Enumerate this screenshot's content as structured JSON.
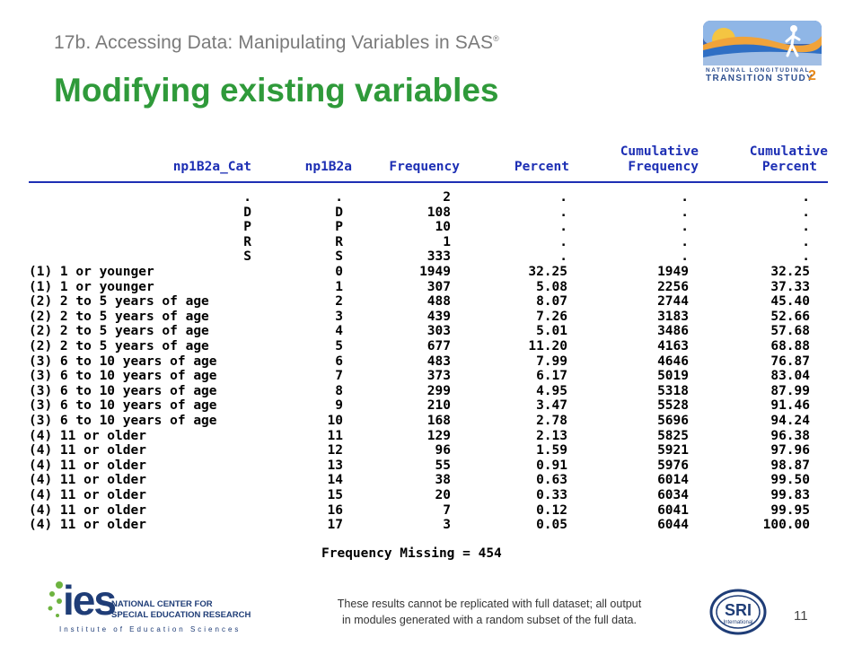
{
  "header": {
    "subtitle": "17b. Accessing Data: Manipulating Variables in SAS",
    "subtitle_mark": "®",
    "title": "Modifying existing variables"
  },
  "logos": {
    "nlts_line1": "NATIONAL LONGITUDINAL",
    "nlts_line2": "TRANSITION STUDY",
    "nlts_number": "2",
    "ies_wordmark": "ies",
    "ies_line1": "NATIONAL CENTER FOR",
    "ies_line2": "SPECIAL EDUCATION RESEARCH",
    "ies_subline": "Institute of Education Sciences",
    "sri_text": "SRI",
    "sri_subtext": "International"
  },
  "table": {
    "headers": {
      "cat": "np1B2a_Cat",
      "var": "np1B2a",
      "freq": "Frequency",
      "pct": "Percent",
      "cumfreq_1": "Cumulative",
      "cumfreq_2": "Frequency",
      "cumpct_1": "Cumulative",
      "cumpct_2": "Percent"
    },
    "rows": [
      {
        "cat": ".",
        "var": ".",
        "freq": "2",
        "pct": ".",
        "cf": ".",
        "cp": "."
      },
      {
        "cat": "D",
        "var": "D",
        "freq": "108",
        "pct": ".",
        "cf": ".",
        "cp": "."
      },
      {
        "cat": "P",
        "var": "P",
        "freq": "10",
        "pct": ".",
        "cf": ".",
        "cp": "."
      },
      {
        "cat": "R",
        "var": "R",
        "freq": "1",
        "pct": ".",
        "cf": ".",
        "cp": "."
      },
      {
        "cat": "S",
        "var": "S",
        "freq": "333",
        "pct": ".",
        "cf": ".",
        "cp": "."
      },
      {
        "cat": "(1) 1 or younger",
        "var": "0",
        "freq": "1949",
        "pct": "32.25",
        "cf": "1949",
        "cp": "32.25"
      },
      {
        "cat": "(1) 1 or younger",
        "var": "1",
        "freq": "307",
        "pct": "5.08",
        "cf": "2256",
        "cp": "37.33"
      },
      {
        "cat": "(2) 2 to 5 years of age",
        "var": "2",
        "freq": "488",
        "pct": "8.07",
        "cf": "2744",
        "cp": "45.40"
      },
      {
        "cat": "(2) 2 to 5 years of age",
        "var": "3",
        "freq": "439",
        "pct": "7.26",
        "cf": "3183",
        "cp": "52.66"
      },
      {
        "cat": "(2) 2 to 5 years of age",
        "var": "4",
        "freq": "303",
        "pct": "5.01",
        "cf": "3486",
        "cp": "57.68"
      },
      {
        "cat": "(2) 2 to 5 years of age",
        "var": "5",
        "freq": "677",
        "pct": "11.20",
        "cf": "4163",
        "cp": "68.88"
      },
      {
        "cat": "(3) 6 to 10 years of age",
        "var": "6",
        "freq": "483",
        "pct": "7.99",
        "cf": "4646",
        "cp": "76.87"
      },
      {
        "cat": "(3) 6 to 10 years of age",
        "var": "7",
        "freq": "373",
        "pct": "6.17",
        "cf": "5019",
        "cp": "83.04"
      },
      {
        "cat": "(3) 6 to 10 years of age",
        "var": "8",
        "freq": "299",
        "pct": "4.95",
        "cf": "5318",
        "cp": "87.99"
      },
      {
        "cat": "(3) 6 to 10 years of age",
        "var": "9",
        "freq": "210",
        "pct": "3.47",
        "cf": "5528",
        "cp": "91.46"
      },
      {
        "cat": "(3) 6 to 10 years of age",
        "var": "10",
        "freq": "168",
        "pct": "2.78",
        "cf": "5696",
        "cp": "94.24"
      },
      {
        "cat": "(4) 11 or older",
        "var": "11",
        "freq": "129",
        "pct": "2.13",
        "cf": "5825",
        "cp": "96.38"
      },
      {
        "cat": "(4) 11 or older",
        "var": "12",
        "freq": "96",
        "pct": "1.59",
        "cf": "5921",
        "cp": "97.96"
      },
      {
        "cat": "(4) 11 or older",
        "var": "13",
        "freq": "55",
        "pct": "0.91",
        "cf": "5976",
        "cp": "98.87"
      },
      {
        "cat": "(4) 11 or older",
        "var": "14",
        "freq": "38",
        "pct": "0.63",
        "cf": "6014",
        "cp": "99.50"
      },
      {
        "cat": "(4) 11 or older",
        "var": "15",
        "freq": "20",
        "pct": "0.33",
        "cf": "6034",
        "cp": "99.83"
      },
      {
        "cat": "(4) 11 or older",
        "var": "16",
        "freq": "7",
        "pct": "0.12",
        "cf": "6041",
        "cp": "99.95"
      },
      {
        "cat": "(4) 11 or older",
        "var": "17",
        "freq": "3",
        "pct": "0.05",
        "cf": "6044",
        "cp": "100.00"
      }
    ],
    "missing": "Frequency Missing = 454"
  },
  "footer": {
    "note_line1": "These results cannot be replicated with full dataset; all output",
    "note_line2": "in modules generated with a random subset of the full data.",
    "page_number": "11"
  },
  "colors": {
    "title_green": "#2f9a3a",
    "header_blue": "#1d2fb4",
    "logo_navy": "#1f3d77",
    "logo_green": "#6db33f"
  }
}
